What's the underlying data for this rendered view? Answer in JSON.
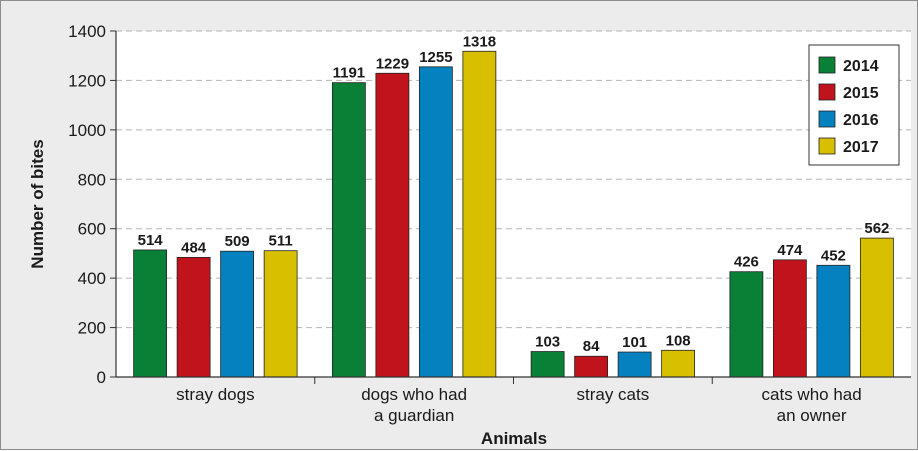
{
  "chart_data": {
    "type": "bar",
    "title": "",
    "xlabel": "Animals",
    "ylabel": "Number of bites",
    "ylim": [
      0,
      1400
    ],
    "yticks": [
      0,
      200,
      400,
      600,
      800,
      1000,
      1200,
      1400
    ],
    "grid": true,
    "legend_position": "top-right",
    "categories": [
      [
        "stray dogs"
      ],
      [
        "dogs who had",
        "a guardian"
      ],
      [
        "stray cats"
      ],
      [
        "cats who had",
        "an owner"
      ]
    ],
    "series": [
      {
        "name": "2014",
        "color": "#0a8037",
        "values": [
          514,
          1191,
          103,
          426
        ]
      },
      {
        "name": "2015",
        "color": "#c0131b",
        "values": [
          484,
          1229,
          84,
          474
        ]
      },
      {
        "name": "2016",
        "color": "#0581bf",
        "values": [
          509,
          1255,
          101,
          452
        ]
      },
      {
        "name": "2017",
        "color": "#d8c000",
        "values": [
          511,
          1318,
          108,
          562
        ]
      }
    ]
  }
}
